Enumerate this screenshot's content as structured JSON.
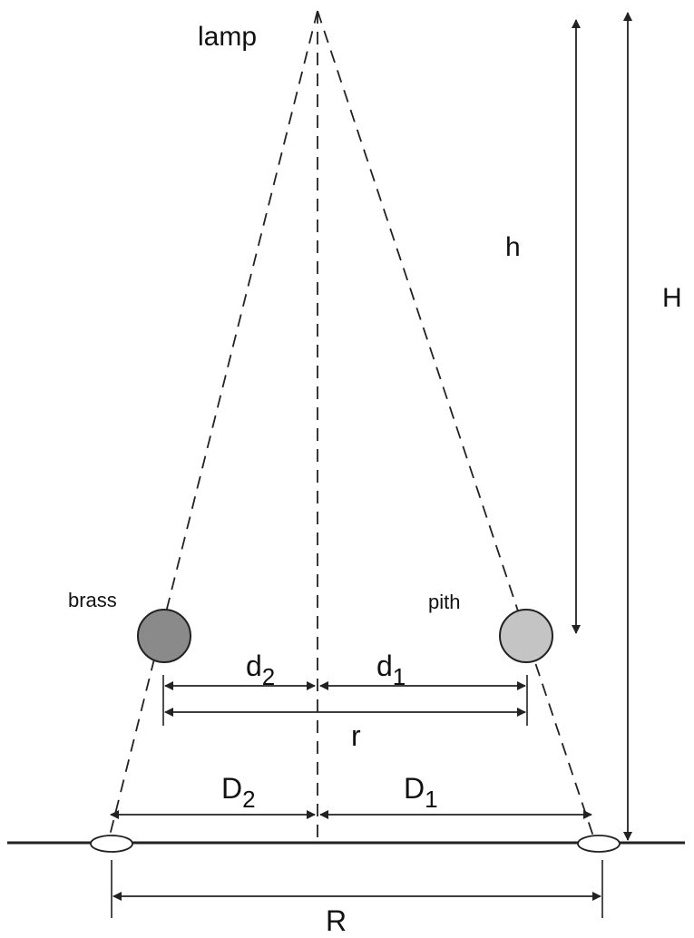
{
  "labels": {
    "lamp": "lamp",
    "brass": "brass",
    "pith": "pith",
    "h": "h",
    "H": "H",
    "d2_main": "d",
    "d2_sub": "2",
    "d1_main": "d",
    "d1_sub": "1",
    "r": "r",
    "D2_main": "D",
    "D2_sub": "2",
    "D1_main": "D",
    "D1_sub": "1",
    "R": "R"
  },
  "colors": {
    "brass_ball": "#8a8a8a",
    "pith_ball": "#c4c4c4",
    "ink": "#222222"
  }
}
